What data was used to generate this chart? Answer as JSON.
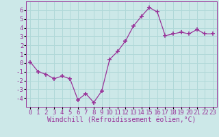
{
  "x": [
    0,
    1,
    2,
    3,
    4,
    5,
    6,
    7,
    8,
    9,
    10,
    11,
    12,
    13,
    14,
    15,
    16,
    17,
    18,
    19,
    20,
    21,
    22,
    23
  ],
  "y": [
    0.1,
    -1.0,
    -1.3,
    -1.8,
    -1.5,
    -1.8,
    -4.2,
    -3.5,
    -4.5,
    -3.2,
    0.4,
    1.3,
    2.5,
    4.2,
    5.3,
    6.3,
    5.8,
    3.1,
    3.3,
    3.5,
    3.3,
    3.8,
    3.3,
    3.3
  ],
  "line_color": "#993399",
  "marker": "+",
  "xlabel": "Windchill (Refroidissement éolien,°C)",
  "ylim": [
    -5,
    7
  ],
  "yticks": [
    -4,
    -3,
    -2,
    -1,
    0,
    1,
    2,
    3,
    4,
    5,
    6
  ],
  "xticks": [
    0,
    1,
    2,
    3,
    4,
    5,
    6,
    7,
    8,
    9,
    10,
    11,
    12,
    13,
    14,
    15,
    16,
    17,
    18,
    19,
    20,
    21,
    22,
    23
  ],
  "bg_color": "#cce8e8",
  "grid_color": "#b0d8d8",
  "font_color": "#993399",
  "font_name": "monospace",
  "tick_fontsize": 6.5,
  "xlabel_fontsize": 7.0
}
